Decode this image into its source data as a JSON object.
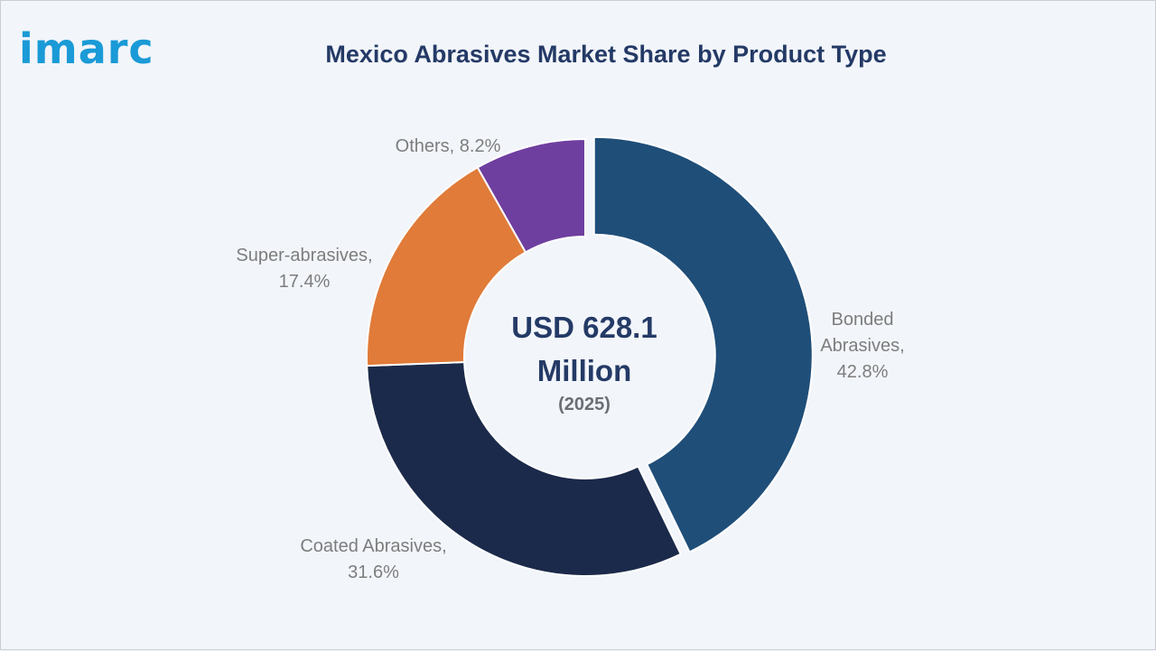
{
  "brand": {
    "logo_text": "imarc"
  },
  "chart_data": {
    "type": "pie",
    "title": "Mexico Abrasives Market Share by Product Type",
    "center": {
      "value": "USD 628.1 Million",
      "value_line1": "USD 628.1",
      "value_line2": "Million",
      "year": "(2025)"
    },
    "unit": "%",
    "slices": [
      {
        "name": "Bonded Abrasives",
        "value": 42.8,
        "color": "#1f4e79",
        "label_line1": "Bonded",
        "label_line2": "Abrasives,",
        "label_line3": "42.8%"
      },
      {
        "name": "Coated Abrasives",
        "value": 31.6,
        "color": "#1b2a4a",
        "label_line1": "Coated Abrasives,",
        "label_line2": "31.6%"
      },
      {
        "name": "Super-abrasives",
        "value": 17.4,
        "color": "#e07b39",
        "label_line1": "Super-abrasives,",
        "label_line2": "17.4%"
      },
      {
        "name": "Others",
        "value": 8.2,
        "color": "#6f3fa0",
        "label_line1": "Others, 8.2%"
      }
    ]
  }
}
